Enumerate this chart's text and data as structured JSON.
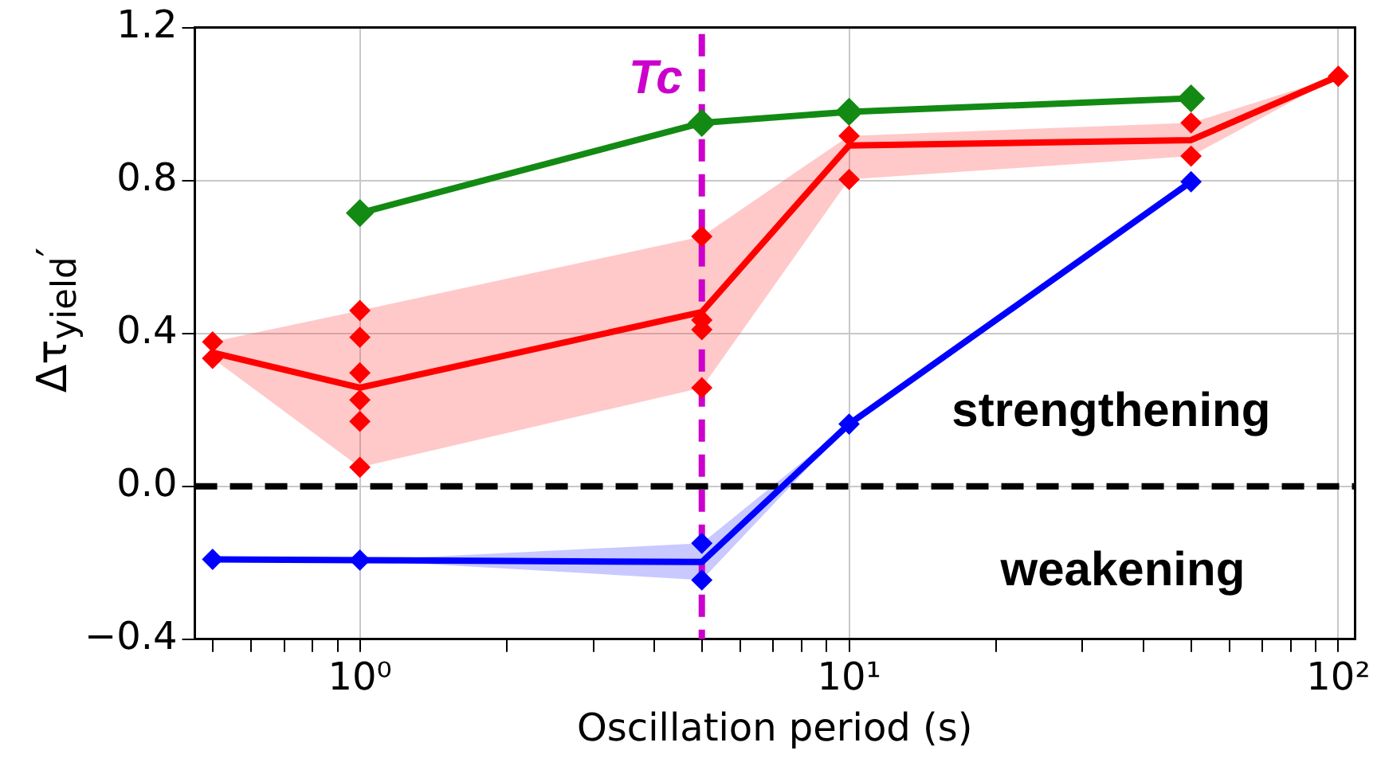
{
  "chart_data": {
    "type": "line",
    "xlabel": "Oscillation period (s)",
    "ylabel": "Δτ$_{yield}$′",
    "log": "x",
    "xlim": [
      0.46,
      108
    ],
    "xticks": [
      {
        "value": 0.5,
        "label": null
      },
      {
        "value": 0.6,
        "label": null
      },
      {
        "value": 0.7,
        "label": null
      },
      {
        "value": 0.8,
        "label": null
      },
      {
        "value": 0.9,
        "label": null
      },
      {
        "value": 1,
        "label": "10⁰"
      },
      {
        "value": 2,
        "label": null
      },
      {
        "value": 3,
        "label": null
      },
      {
        "value": 4,
        "label": null
      },
      {
        "value": 5,
        "label": null
      },
      {
        "value": 6,
        "label": null
      },
      {
        "value": 7,
        "label": null
      },
      {
        "value": 8,
        "label": null
      },
      {
        "value": 9,
        "label": null
      },
      {
        "value": 10,
        "label": "10¹"
      },
      {
        "value": 20,
        "label": null
      },
      {
        "value": 30,
        "label": null
      },
      {
        "value": 40,
        "label": null
      },
      {
        "value": 50,
        "label": null
      },
      {
        "value": 60,
        "label": null
      },
      {
        "value": 70,
        "label": null
      },
      {
        "value": 80,
        "label": null
      },
      {
        "value": 90,
        "label": null
      },
      {
        "value": 100,
        "label": "10²"
      }
    ],
    "ylim": [
      -0.4,
      1.2
    ],
    "yticks": [
      {
        "value": -0.4,
        "label": "−0.4"
      },
      {
        "value": 0,
        "label": "0.0"
      },
      0.4,
      0.8,
      1.2
    ],
    "grid": true,
    "legend": false,
    "marker": "diamond",
    "series": [
      {
        "color": "#138a13",
        "x": [
          1,
          5,
          10,
          50
        ],
        "values": [
          0.715,
          0.951,
          0.98,
          1.015
        ]
      },
      {
        "color": "#ff0000",
        "marker": "none",
        "x": [
          0.5,
          1,
          5,
          10,
          50,
          100
        ],
        "values": [
          0.35,
          0.258,
          0.456,
          0.892,
          0.906,
          1.073
        ],
        "lower": [
          0.335,
          0.05,
          0.258,
          0.803,
          0.864,
          1.073
        ],
        "upper": [
          0.378,
          0.46,
          0.654,
          0.917,
          0.951,
          1.073
        ]
      },
      {
        "color": "#0000ff",
        "marker": "none",
        "x": [
          0.5,
          1,
          5,
          10,
          50
        ],
        "values": [
          -0.191,
          -0.193,
          -0.198,
          0.163,
          0.797
        ],
        "lower": [
          -0.191,
          -0.193,
          -0.245,
          0.163,
          0.797
        ],
        "upper": [
          -0.191,
          -0.193,
          -0.149,
          0.163,
          0.797
        ]
      },
      {
        "type": "scatter",
        "color": "#ff0000",
        "x": [
          0.5,
          0.5,
          1,
          1,
          1,
          1,
          1,
          1,
          5,
          5,
          5,
          5,
          10,
          10,
          50,
          50,
          100
        ],
        "values": [
          0.378,
          0.335,
          0.46,
          0.39,
          0.297,
          0.226,
          0.17,
          0.05,
          0.654,
          0.435,
          0.41,
          0.258,
          0.917,
          0.803,
          0.951,
          0.864,
          1.073
        ]
      },
      {
        "type": "scatter",
        "color": "#0000ff",
        "x": [
          0.5,
          1,
          5,
          5,
          10,
          50
        ],
        "values": [
          -0.191,
          -0.193,
          -0.149,
          -0.245,
          0.163,
          0.797
        ]
      }
    ],
    "ref_lines": [
      {
        "axis": "y",
        "value": 0,
        "color": "#000000",
        "line_style": "dashed"
      },
      {
        "axis": "x",
        "value": 5,
        "label": "Tc",
        "color": "#cc00cc",
        "line_style": "dashed"
      }
    ],
    "annotations": [
      "strengthening",
      "weakening"
    ]
  }
}
